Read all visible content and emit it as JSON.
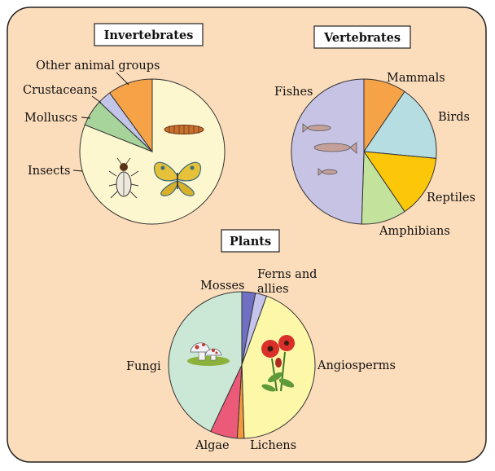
{
  "colors": {
    "panel_bg": "#fbdcbb",
    "panel_border": "#222222",
    "slice_stroke": "#333333"
  },
  "chart_data": [
    {
      "type": "pie",
      "title": "Invertebrates",
      "slices": [
        {
          "label": "Insects",
          "value": 81,
          "color": "#fdf7cf"
        },
        {
          "label": "Molluscs",
          "value": 6,
          "color": "#a7d49b"
        },
        {
          "label": "Crustaceans",
          "value": 3,
          "color": "#c2c4e8"
        },
        {
          "label": "Other animal groups",
          "value": 10,
          "color": "#f6a347"
        }
      ],
      "icons": [
        "larva-icon",
        "beetle-icon",
        "butterfly-icon"
      ]
    },
    {
      "type": "pie",
      "title": "Vertebrates",
      "slices": [
        {
          "label": "Mammals",
          "value": 9.5,
          "color": "#f6a347"
        },
        {
          "label": "Birds",
          "value": 17,
          "color": "#b6dde2"
        },
        {
          "label": "Reptiles",
          "value": 14,
          "color": "#fcc708"
        },
        {
          "label": "Amphibians",
          "value": 10,
          "color": "#c3e29c"
        },
        {
          "label": "Fishes",
          "value": 49.5,
          "color": "#c7c3e5"
        }
      ],
      "icons": [
        "fish-icon"
      ]
    },
    {
      "type": "pie",
      "title": "Plants",
      "slices": [
        {
          "label": "Mosses",
          "value": 3,
          "color": "#6f6fc4"
        },
        {
          "label": "Ferns and allies",
          "value": 2.5,
          "color": "#c4c4ec"
        },
        {
          "label": "Angiosperms",
          "value": 44,
          "color": "#fdf7a8"
        },
        {
          "label": "Lichens",
          "value": 1.5,
          "color": "#f59a3c"
        },
        {
          "label": "Algae",
          "value": 6,
          "color": "#ec5a79"
        },
        {
          "label": "Fungi",
          "value": 43,
          "color": "#cbe7d6"
        }
      ],
      "icons": [
        "mushroom-icon",
        "poppy-flower-icon"
      ]
    }
  ]
}
